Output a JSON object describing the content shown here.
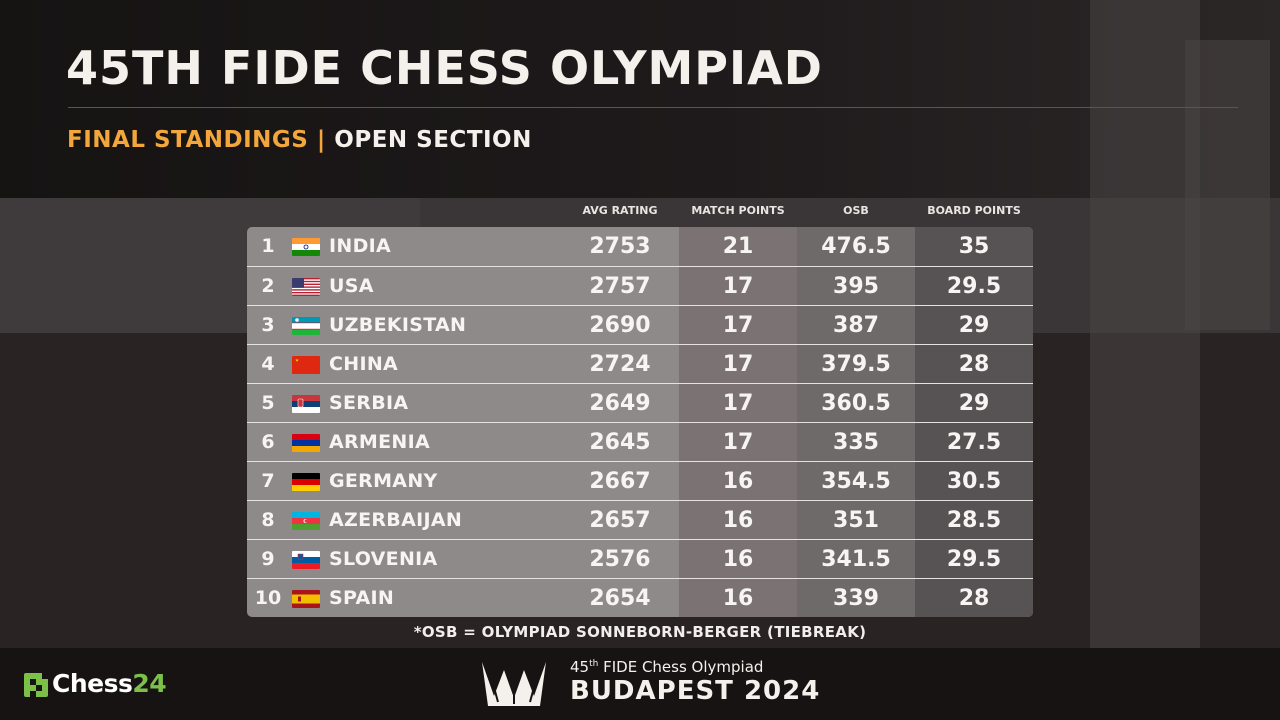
{
  "title": "45TH FIDE CHESS OLYMPIAD",
  "subtitle": {
    "left": "FINAL STANDINGS",
    "separator": "|",
    "right": "OPEN SECTION"
  },
  "colors": {
    "accent": "#f2a63b",
    "brand_green": "#7cc04a"
  },
  "table": {
    "headers": {
      "avg_rating": "AVG RATING",
      "match_points": "MATCH POINTS",
      "osb": "OSB",
      "board_points": "BOARD POINTS"
    },
    "rows": [
      {
        "rank": "1",
        "flag": "india-flag-icon",
        "country": "INDIA",
        "avg_rating": "2753",
        "match_points": "21",
        "osb": "476.5",
        "board_points": "35"
      },
      {
        "rank": "2",
        "flag": "usa-flag-icon",
        "country": "USA",
        "avg_rating": "2757",
        "match_points": "17",
        "osb": "395",
        "board_points": "29.5"
      },
      {
        "rank": "3",
        "flag": "uzbekistan-flag-icon",
        "country": "UZBEKISTAN",
        "avg_rating": "2690",
        "match_points": "17",
        "osb": "387",
        "board_points": "29"
      },
      {
        "rank": "4",
        "flag": "china-flag-icon",
        "country": "CHINA",
        "avg_rating": "2724",
        "match_points": "17",
        "osb": "379.5",
        "board_points": "28"
      },
      {
        "rank": "5",
        "flag": "serbia-flag-icon",
        "country": "SERBIA",
        "avg_rating": "2649",
        "match_points": "17",
        "osb": "360.5",
        "board_points": "29"
      },
      {
        "rank": "6",
        "flag": "armenia-flag-icon",
        "country": "ARMENIA",
        "avg_rating": "2645",
        "match_points": "17",
        "osb": "335",
        "board_points": "27.5"
      },
      {
        "rank": "7",
        "flag": "germany-flag-icon",
        "country": "GERMANY",
        "avg_rating": "2667",
        "match_points": "16",
        "osb": "354.5",
        "board_points": "30.5"
      },
      {
        "rank": "8",
        "flag": "azerbaijan-flag-icon",
        "country": "AZERBAIJAN",
        "avg_rating": "2657",
        "match_points": "16",
        "osb": "351",
        "board_points": "28.5"
      },
      {
        "rank": "9",
        "flag": "slovenia-flag-icon",
        "country": "SLOVENIA",
        "avg_rating": "2576",
        "match_points": "16",
        "osb": "341.5",
        "board_points": "29.5"
      },
      {
        "rank": "10",
        "flag": "spain-flag-icon",
        "country": "SPAIN",
        "avg_rating": "2654",
        "match_points": "16",
        "osb": "339",
        "board_points": "28"
      }
    ]
  },
  "footnote": "*OSB = OLYMPIAD SONNEBORN-BERGER (TIEBREAK)",
  "footer": {
    "brand_left": "Chess",
    "brand_right": "24",
    "event_prefix": "45",
    "event_ordinal": "th",
    "event_name": " FIDE Chess Olympiad",
    "event_city": "BUDAPEST 2024"
  }
}
